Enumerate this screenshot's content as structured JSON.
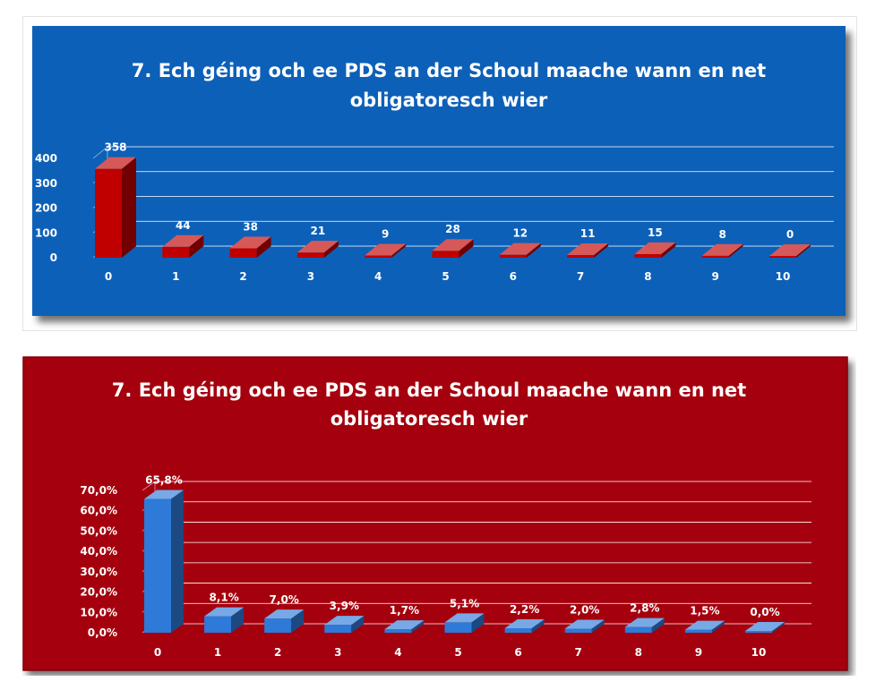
{
  "chart_data": [
    {
      "type": "bar",
      "title": "7. Ech géing och ee PDS an der Schoul maache wann en net obligatoresch wier",
      "title_lines": [
        "7. Ech géing och ee PDS an der Schoul maache wann en net",
        "obligatoresch wier"
      ],
      "categories": [
        "0",
        "1",
        "2",
        "3",
        "4",
        "5",
        "6",
        "7",
        "8",
        "9",
        "10"
      ],
      "values": [
        358,
        44,
        38,
        21,
        9,
        28,
        12,
        11,
        15,
        8,
        0
      ],
      "data_labels": [
        "358",
        "44",
        "38",
        "21",
        "9",
        "28",
        "12",
        "11",
        "15",
        "8",
        "0"
      ],
      "yticks": [
        "0",
        "100",
        "200",
        "300",
        "400"
      ],
      "ylim": [
        0,
        400
      ],
      "grid": true,
      "legend": "none",
      "bar_style": "3d",
      "background_color": "#1060b8",
      "bar_color": "#c00000"
    },
    {
      "type": "bar",
      "title": "7. Ech géing och ee PDS an der Schoul maache wann en net obligatoresch wier",
      "title_lines": [
        "7. Ech géing och ee PDS an der Schoul maache wann en net",
        "obligatoresch wier"
      ],
      "categories": [
        "0",
        "1",
        "2",
        "3",
        "4",
        "5",
        "6",
        "7",
        "8",
        "9",
        "10"
      ],
      "values": [
        65.8,
        8.1,
        7.0,
        3.9,
        1.7,
        5.1,
        2.2,
        2.0,
        2.8,
        1.5,
        0.0
      ],
      "data_labels": [
        "65,8%",
        "8,1%",
        "7,0%",
        "3,9%",
        "1,7%",
        "5,1%",
        "2,2%",
        "2,0%",
        "2,8%",
        "1,5%",
        "0,0%"
      ],
      "yticks": [
        "0,0%",
        "10,0%",
        "20,0%",
        "30,0%",
        "40,0%",
        "50,0%",
        "60,0%",
        "70,0%"
      ],
      "ylim": [
        0,
        70
      ],
      "grid": true,
      "legend": "none",
      "bar_style": "3d",
      "background_color": "#a50010",
      "bar_color": "#2e7ad8"
    }
  ]
}
